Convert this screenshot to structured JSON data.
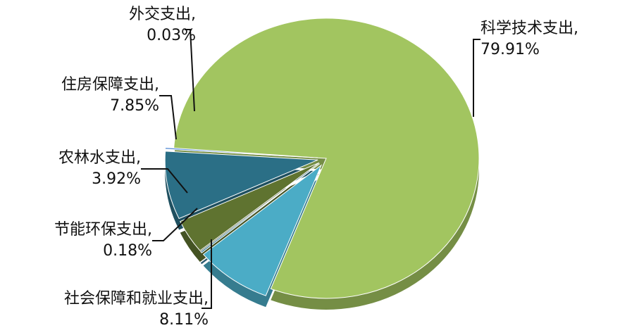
{
  "chart_data": {
    "type": "pie",
    "title": "",
    "slices": [
      {
        "label": "科学技术支出",
        "value": 79.91,
        "label_text": "科学技术支出,",
        "value_text": "79.91%",
        "color": "#a2c560"
      },
      {
        "label": "社会保障和就业支出",
        "value": 8.11,
        "label_text": "社会保障和就业支出,",
        "value_text": "8.11%",
        "color": "#4bacc6"
      },
      {
        "label": "节能环保支出",
        "value": 0.18,
        "label_text": "节能环保支出,",
        "value_text": "0.18%",
        "color": "#3d7d9a"
      },
      {
        "label": "农林水支出",
        "value": 3.92,
        "label_text": "农林水支出,",
        "value_text": "3.92%",
        "color": "#5f7330"
      },
      {
        "label": "住房保障支出",
        "value": 7.85,
        "label_text": "住房保障支出,",
        "value_text": "7.85%",
        "color": "#2b6f86"
      },
      {
        "label": "外交支出",
        "value": 0.03,
        "label_text": "外交支出,",
        "value_text": "0.03%",
        "color": "#5b8fd6"
      }
    ]
  }
}
